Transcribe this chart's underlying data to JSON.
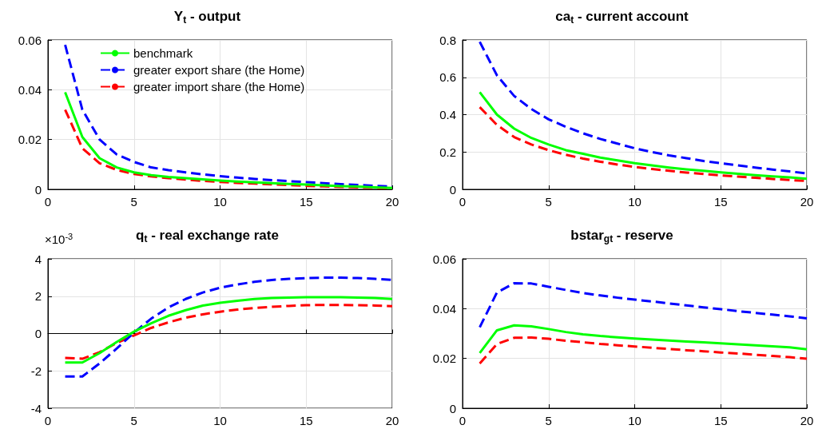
{
  "chart_data": [
    {
      "type": "line",
      "title": "Y$_{t}$ - output",
      "x": [
        1,
        2,
        3,
        4,
        5,
        6,
        7,
        8,
        9,
        10,
        11,
        12,
        13,
        14,
        15,
        16,
        17,
        18,
        19,
        20
      ],
      "xlim": [
        0,
        20
      ],
      "xticks": [
        0,
        5,
        10,
        15,
        20
      ],
      "ylim": [
        0,
        0.06
      ],
      "yticks": [
        0,
        0.02,
        0.04,
        0.06
      ],
      "grid": true,
      "legend": "top",
      "marker": "none",
      "series": [
        {
          "name": "benchmark",
          "color": "#00ff00",
          "line_style": "solid",
          "values": [
            0.039,
            0.021,
            0.0125,
            0.0088,
            0.0068,
            0.0057,
            0.005,
            0.0045,
            0.004,
            0.0035,
            0.0031,
            0.0028,
            0.0025,
            0.0022,
            0.0019,
            0.0016,
            0.0013,
            0.0011,
            0.0008,
            0.0006
          ]
        },
        {
          "name": "greater export share (the Home)",
          "color": "#0000ff",
          "line_style": "dashed",
          "values": [
            0.058,
            0.032,
            0.02,
            0.014,
            0.011,
            0.0088,
            0.0077,
            0.0068,
            0.006,
            0.0053,
            0.0047,
            0.0042,
            0.0037,
            0.0033,
            0.0029,
            0.0025,
            0.0021,
            0.0018,
            0.0014,
            0.0011
          ]
        },
        {
          "name": "greater import share (the Home)",
          "color": "#ff0000",
          "line_style": "dashed",
          "values": [
            0.032,
            0.0165,
            0.0105,
            0.0078,
            0.0062,
            0.0052,
            0.0045,
            0.0039,
            0.0034,
            0.003,
            0.0026,
            0.0023,
            0.002,
            0.0017,
            0.0014,
            0.0012,
            0.001,
            0.0008,
            0.0006,
            0.0004
          ]
        }
      ]
    },
    {
      "type": "line",
      "title": "ca$_{t}$ - current account",
      "x": [
        1,
        2,
        3,
        4,
        5,
        6,
        7,
        8,
        9,
        10,
        11,
        12,
        13,
        14,
        15,
        16,
        17,
        18,
        19,
        20
      ],
      "xlim": [
        0,
        20
      ],
      "xticks": [
        0,
        5,
        10,
        15,
        20
      ],
      "ylim": [
        0,
        0.8
      ],
      "yticks": [
        0,
        0.2,
        0.4,
        0.6,
        0.8
      ],
      "grid": true,
      "marker": "none",
      "series": [
        {
          "color": "#00ff00",
          "line_style": "solid",
          "values": [
            0.52,
            0.4,
            0.325,
            0.275,
            0.24,
            0.21,
            0.19,
            0.17,
            0.155,
            0.14,
            0.128,
            0.117,
            0.107,
            0.099,
            0.091,
            0.083,
            0.076,
            0.07,
            0.064,
            0.057
          ]
        },
        {
          "color": "#0000ff",
          "line_style": "dashed",
          "values": [
            0.79,
            0.61,
            0.5,
            0.43,
            0.375,
            0.335,
            0.3,
            0.27,
            0.245,
            0.22,
            0.2,
            0.182,
            0.167,
            0.152,
            0.14,
            0.128,
            0.117,
            0.106,
            0.096,
            0.085
          ]
        },
        {
          "color": "#ff0000",
          "line_style": "dashed",
          "values": [
            0.44,
            0.345,
            0.28,
            0.24,
            0.21,
            0.185,
            0.165,
            0.148,
            0.133,
            0.12,
            0.109,
            0.099,
            0.09,
            0.082,
            0.075,
            0.068,
            0.062,
            0.056,
            0.05,
            0.045
          ]
        }
      ]
    },
    {
      "type": "line",
      "title": "q$_{t}$ - real exchange rate",
      "annotations": [
        "×10$^{-3}$"
      ],
      "x": [
        1,
        2,
        3,
        4,
        5,
        6,
        7,
        8,
        9,
        10,
        11,
        12,
        13,
        14,
        15,
        16,
        17,
        18,
        19,
        20
      ],
      "xlim": [
        0,
        20
      ],
      "xticks": [
        0,
        5,
        10,
        15,
        20
      ],
      "ylim": [
        -4,
        4
      ],
      "yticks": [
        -4,
        -2,
        0,
        2,
        4
      ],
      "grid": true,
      "marker": "none",
      "series": [
        {
          "color": "#00ff00",
          "line_style": "solid",
          "values": [
            -1.55,
            -1.55,
            -1.05,
            -0.45,
            0.1,
            0.55,
            0.95,
            1.25,
            1.5,
            1.65,
            1.75,
            1.85,
            1.9,
            1.93,
            1.95,
            1.95,
            1.95,
            1.93,
            1.9,
            1.85
          ]
        },
        {
          "color": "#0000ff",
          "line_style": "dashed",
          "values": [
            -2.3,
            -2.3,
            -1.6,
            -0.8,
            0.05,
            0.8,
            1.4,
            1.85,
            2.2,
            2.45,
            2.63,
            2.77,
            2.87,
            2.93,
            2.97,
            2.99,
            2.99,
            2.97,
            2.93,
            2.87
          ]
        },
        {
          "color": "#ff0000",
          "line_style": "dashed",
          "values": [
            -1.3,
            -1.35,
            -1.0,
            -0.5,
            -0.1,
            0.3,
            0.6,
            0.85,
            1.03,
            1.17,
            1.28,
            1.37,
            1.43,
            1.48,
            1.52,
            1.53,
            1.53,
            1.52,
            1.5,
            1.47
          ]
        }
      ]
    },
    {
      "type": "line",
      "title": "bstar$_{gt}$ - reserve",
      "x": [
        1,
        2,
        3,
        4,
        5,
        6,
        7,
        8,
        9,
        10,
        11,
        12,
        13,
        14,
        15,
        16,
        17,
        18,
        19,
        20
      ],
      "xlim": [
        0,
        20
      ],
      "xticks": [
        0,
        5,
        10,
        15,
        20
      ],
      "ylim": [
        0,
        0.06
      ],
      "yticks": [
        0,
        0.02,
        0.04,
        0.06
      ],
      "grid": true,
      "marker": "none",
      "series": [
        {
          "color": "#00ff00",
          "line_style": "solid",
          "values": [
            0.0222,
            0.0313,
            0.0333,
            0.0329,
            0.0318,
            0.0306,
            0.0297,
            0.029,
            0.0285,
            0.028,
            0.0276,
            0.0272,
            0.0268,
            0.0265,
            0.0261,
            0.0257,
            0.0253,
            0.0249,
            0.0245,
            0.0237
          ]
        },
        {
          "color": "#0000ff",
          "line_style": "dashed",
          "values": [
            0.0325,
            0.0465,
            0.0502,
            0.0501,
            0.0488,
            0.0475,
            0.0463,
            0.0453,
            0.0444,
            0.0436,
            0.0429,
            0.0421,
            0.0413,
            0.0405,
            0.0398,
            0.039,
            0.0383,
            0.0376,
            0.0369,
            0.0361
          ]
        },
        {
          "color": "#ff0000",
          "line_style": "dashed",
          "values": [
            0.018,
            0.0258,
            0.0283,
            0.0284,
            0.0279,
            0.0271,
            0.0265,
            0.0258,
            0.0253,
            0.0248,
            0.0243,
            0.0238,
            0.0233,
            0.0229,
            0.0224,
            0.022,
            0.0215,
            0.021,
            0.0205,
            0.0199
          ]
        }
      ]
    }
  ]
}
